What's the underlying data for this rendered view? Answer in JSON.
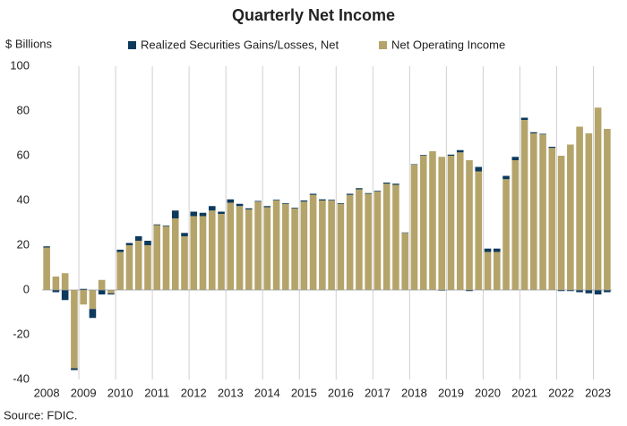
{
  "chart_data": {
    "type": "stacked-bar",
    "title": "Quarterly Net Income",
    "y_label": "$ Billions",
    "source": "Source: FDIC.",
    "categories": [
      "2008",
      null,
      null,
      null,
      "2009",
      null,
      null,
      null,
      "2010",
      null,
      null,
      null,
      "2011",
      null,
      null,
      null,
      "2012",
      null,
      null,
      null,
      "2013",
      null,
      null,
      null,
      "2014",
      null,
      null,
      null,
      "2015",
      null,
      null,
      null,
      "2016",
      null,
      null,
      null,
      "2017",
      null,
      null,
      null,
      "2018",
      null,
      null,
      null,
      "2019",
      null,
      null,
      null,
      "2020",
      null,
      null,
      null,
      "2021",
      null,
      null,
      null,
      "2022",
      null,
      null,
      null,
      "2023",
      null
    ],
    "series": [
      {
        "name": "Realized Securities Gains/Losses, Net",
        "color": "#0d3a5c",
        "values": [
          0.5,
          -1,
          -4.5,
          -0.8,
          0.5,
          -4,
          -2,
          -0.5,
          1,
          1,
          2,
          2,
          0.3,
          0.3,
          3.5,
          1.5,
          2,
          1.5,
          2,
          1,
          1.5,
          1,
          0.5,
          0.3,
          0.5,
          0.3,
          0.3,
          0.3,
          0.5,
          0.5,
          0.5,
          0.3,
          0.3,
          0.5,
          0.5,
          0.3,
          0.3,
          0.5,
          0.5,
          0.2,
          0.2,
          0.3,
          0,
          -0.3,
          0.5,
          1,
          -0.5,
          2,
          1.5,
          1.5,
          1.5,
          1.5,
          1,
          0.5,
          0.3,
          0.5,
          -0.5,
          -0.5,
          -1,
          -1.5,
          -2,
          -1
        ]
      },
      {
        "name": "Net Operating Income",
        "color": "#b5a46a",
        "values": [
          19,
          6,
          7.5,
          -35,
          -6.5,
          -8.5,
          4.5,
          -1.5,
          17,
          20,
          22,
          20,
          29,
          28.5,
          32,
          24,
          33,
          33,
          35.5,
          34,
          39,
          37.5,
          36,
          39.5,
          37,
          40,
          38.5,
          36.5,
          39.5,
          42.5,
          40,
          40,
          38.5,
          42.5,
          45,
          43,
          44,
          47.5,
          47,
          25.5,
          56,
          60,
          62,
          59.5,
          60,
          61.5,
          58,
          53,
          17,
          17,
          49.5,
          58,
          76,
          70,
          69.5,
          63.5,
          60,
          65,
          73,
          70,
          81.5,
          72
        ]
      }
    ],
    "ylim": [
      -40,
      100
    ],
    "yticks": [
      -40,
      -20,
      0,
      20,
      40,
      60,
      80,
      100
    ]
  }
}
